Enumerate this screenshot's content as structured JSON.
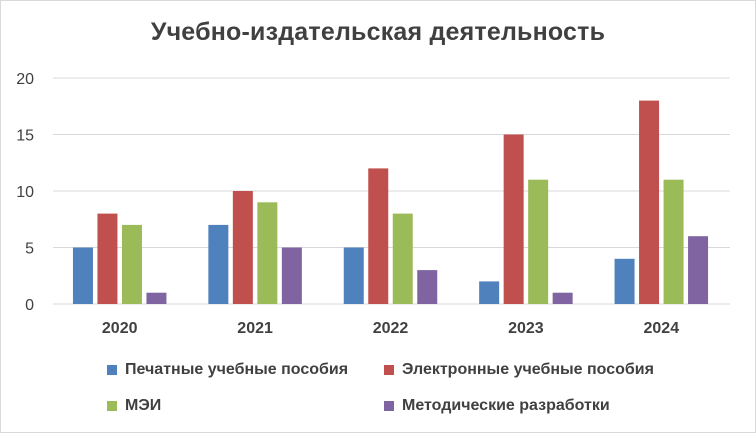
{
  "chart_data": {
    "type": "bar",
    "title": "Учебно-издательская деятельность",
    "categories": [
      "2020",
      "2021",
      "2022",
      "2023",
      "2024"
    ],
    "ylim": [
      0,
      20
    ],
    "yticks": [
      0,
      5,
      10,
      15,
      20
    ],
    "grid": true,
    "legend_position": "bottom",
    "series": [
      {
        "name": "Печатные учебные пособия",
        "color": "#4f81bd",
        "values": [
          5,
          7,
          5,
          2,
          4
        ]
      },
      {
        "name": "Электронные учебные пособия",
        "color": "#c0504d",
        "values": [
          8,
          10,
          12,
          15,
          18
        ]
      },
      {
        "name": "МЭИ",
        "color": "#9bbb59",
        "values": [
          7,
          9,
          8,
          11,
          11
        ]
      },
      {
        "name": "Методические разработки",
        "color": "#8064a2",
        "values": [
          1,
          5,
          3,
          1,
          6
        ]
      }
    ]
  }
}
